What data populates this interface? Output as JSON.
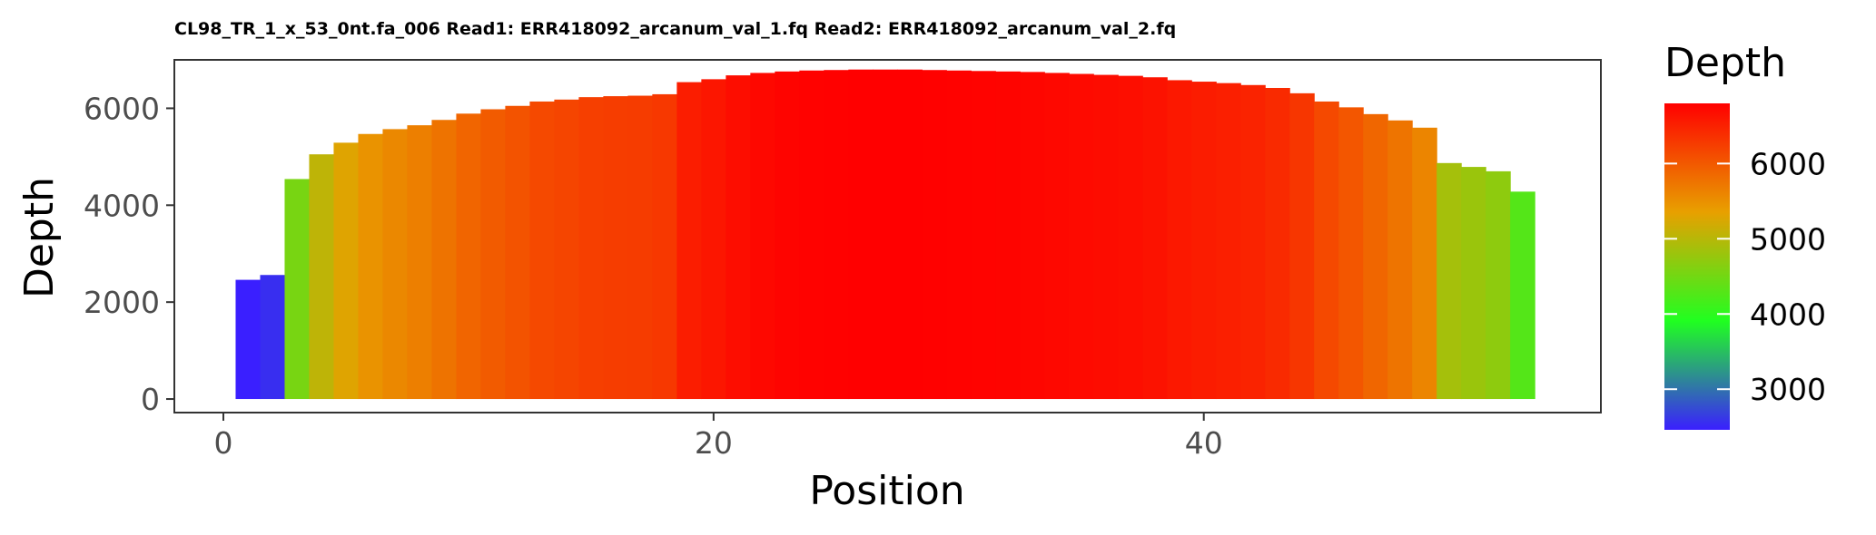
{
  "chart_data": {
    "type": "bar",
    "title": "CL98_TR_1_x_53_0nt.fa_006 Read1: ERR418092_arcanum_val_1.fq Read2: ERR418092_arcanum_val_2.fq",
    "xlabel": "Position",
    "ylabel": "Depth",
    "x": [
      1,
      2,
      3,
      4,
      5,
      6,
      7,
      8,
      9,
      10,
      11,
      12,
      13,
      14,
      15,
      16,
      17,
      18,
      19,
      20,
      21,
      22,
      23,
      24,
      25,
      26,
      27,
      28,
      29,
      30,
      31,
      32,
      33,
      34,
      35,
      36,
      37,
      38,
      39,
      40,
      41,
      42,
      43,
      44,
      45,
      46,
      47,
      48,
      49,
      50,
      51,
      52,
      53
    ],
    "values": [
      2460,
      2560,
      4540,
      5050,
      5290,
      5470,
      5570,
      5650,
      5760,
      5890,
      5980,
      6050,
      6140,
      6180,
      6230,
      6250,
      6260,
      6290,
      6540,
      6600,
      6680,
      6730,
      6760,
      6780,
      6790,
      6800,
      6800,
      6800,
      6790,
      6780,
      6770,
      6760,
      6750,
      6730,
      6710,
      6690,
      6670,
      6640,
      6580,
      6550,
      6520,
      6480,
      6420,
      6310,
      6140,
      6020,
      5880,
      5750,
      5600,
      4870,
      4790,
      4700,
      4280
    ],
    "xlim": [
      -2,
      56.2
    ],
    "ylim": [
      -280,
      7000
    ],
    "x_ticks": [
      0,
      20,
      40
    ],
    "x_tick_labels": [
      "0",
      "20",
      "40"
    ],
    "y_ticks": [
      0,
      2000,
      4000,
      6000
    ],
    "y_tick_labels": [
      "0",
      "2000",
      "4000",
      "6000"
    ],
    "grid": false,
    "legend": {
      "title": "Depth",
      "placement": "right",
      "type": "colorbar",
      "range": [
        2460,
        6800
      ],
      "ticks": [
        3000,
        4000,
        5000,
        6000
      ],
      "tick_labels": [
        "3000",
        "4000",
        "5000",
        "6000"
      ],
      "colors": [
        "#3a1fff",
        "#20ff20",
        "#e8a000",
        "#ff0000"
      ]
    }
  }
}
